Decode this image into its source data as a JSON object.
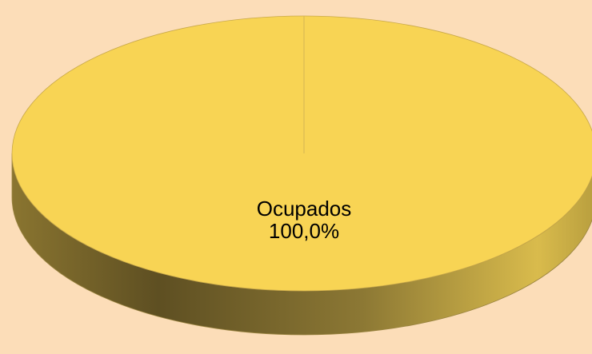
{
  "chart_data": {
    "type": "pie",
    "categories": [
      "Ocupados"
    ],
    "values": [
      100
    ],
    "value_labels": [
      "100,0%"
    ],
    "colors": [
      "#F8D454"
    ],
    "background": "#FCDDB8"
  }
}
